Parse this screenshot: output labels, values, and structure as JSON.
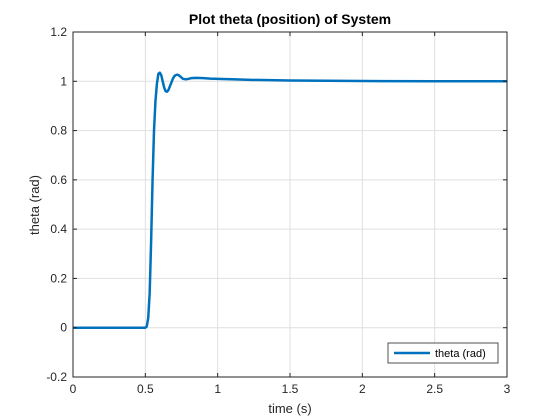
{
  "chart_data": {
    "type": "line",
    "title": "Plot theta (position) of System",
    "xlabel": "time (s)",
    "ylabel": "theta (rad)",
    "xlim": [
      0,
      3
    ],
    "ylim": [
      -0.2,
      1.2
    ],
    "xticks": [
      0,
      0.5,
      1,
      1.5,
      2,
      2.5,
      3
    ],
    "yticks": [
      -0.2,
      0,
      0.2,
      0.4,
      0.6,
      0.8,
      1,
      1.2
    ],
    "xtick_labels": [
      "0",
      "0.5",
      "1",
      "1.5",
      "2",
      "2.5",
      "3"
    ],
    "ytick_labels": [
      "-0.2",
      "0",
      "0.2",
      "0.4",
      "0.6",
      "0.8",
      "1",
      "1.2"
    ],
    "grid": true,
    "legend_position": "bottom-right",
    "series": [
      {
        "name": "theta (rad)",
        "color": "#0072BD",
        "x": [
          0,
          0.5,
          0.51,
          0.52,
          0.53,
          0.54,
          0.55,
          0.56,
          0.57,
          0.58,
          0.59,
          0.6,
          0.61,
          0.62,
          0.63,
          0.64,
          0.65,
          0.66,
          0.67,
          0.68,
          0.69,
          0.7,
          0.71,
          0.72,
          0.73,
          0.74,
          0.75,
          0.76,
          0.78,
          0.8,
          0.82,
          0.85,
          0.9,
          0.95,
          1.0,
          1.1,
          1.2,
          1.3,
          1.5,
          1.75,
          2.0,
          2.5,
          3.0
        ],
        "y": [
          0,
          0,
          0.005,
          0.04,
          0.14,
          0.35,
          0.6,
          0.8,
          0.92,
          0.99,
          1.03,
          1.035,
          1.025,
          1.0,
          0.975,
          0.96,
          0.958,
          0.965,
          0.98,
          0.995,
          1.01,
          1.02,
          1.025,
          1.027,
          1.025,
          1.02,
          1.015,
          1.01,
          1.008,
          1.01,
          1.013,
          1.014,
          1.013,
          1.011,
          1.01,
          1.008,
          1.006,
          1.005,
          1.003,
          1.002,
          1.001,
          1.0,
          1.0
        ]
      }
    ]
  }
}
